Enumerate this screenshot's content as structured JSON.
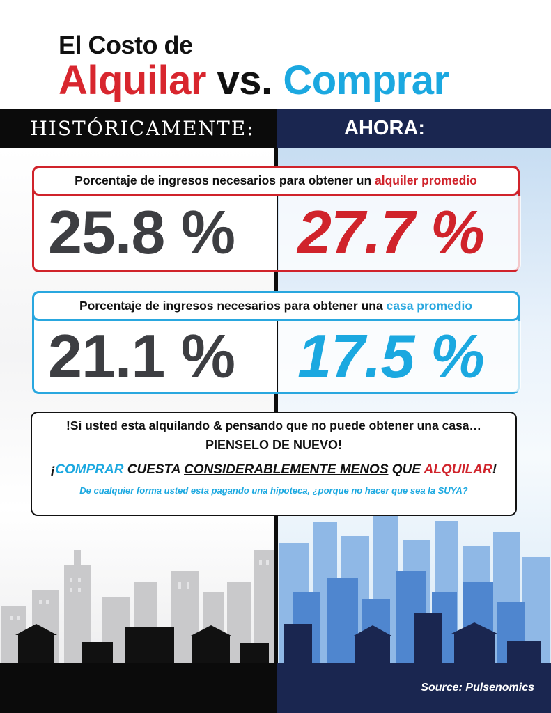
{
  "title": {
    "line1": "El Costo de",
    "word_rent": "Alquilar",
    "word_vs": "vs.",
    "word_buy": "Comprar"
  },
  "header": {
    "left": "HISTÓRICAMENTE:",
    "right": "AHORA:"
  },
  "rent_panel": {
    "label_prefix": "Porcentaje de ingresos necesarios para obtener un ",
    "label_highlight": "alquiler promedio",
    "historical": "25.8 %",
    "now": "27.7 %"
  },
  "buy_panel": {
    "label_prefix": "Porcentaje de ingresos necesarios para obtener una ",
    "label_highlight": "casa promedio",
    "historical": "21.1 %",
    "now": "17.5 %"
  },
  "message": {
    "line1": "!Si usted esta alquilando & pensando que no puede obtener una casa…",
    "line2": "PIENSELO DE NUEVO!",
    "line3_a": "¡",
    "line3_b": "COMPRAR",
    "line3_c": " CUESTA ",
    "line3_d": "CONSIDERABLEMENTE MENOS",
    "line3_e": " QUE ",
    "line3_f": "ALQUILAR",
    "line3_g": "!",
    "line4": "De cualquier forma usted esta pagando una hipoteca, ¿porque no hacer que sea la SUYA?"
  },
  "footer": {
    "source": "Source: Pulsenomics"
  },
  "colors": {
    "red": "#d0232b",
    "blue": "#1ba8e0",
    "navy": "#1a2650",
    "dark": "#0b0b0b"
  }
}
